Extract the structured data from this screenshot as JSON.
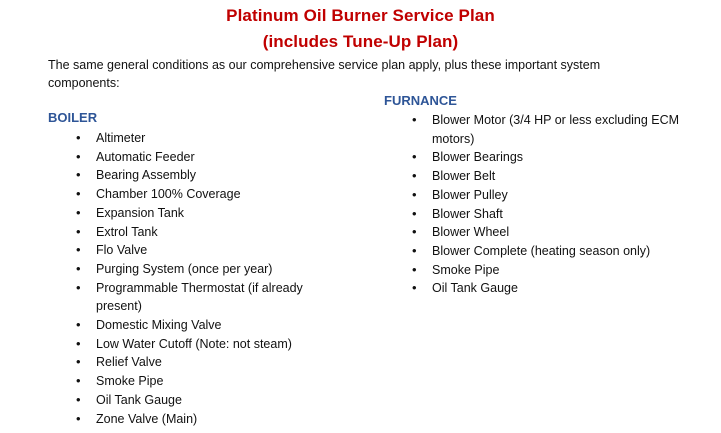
{
  "title_line1": "Platinum  Oil Burner Service Plan",
  "title_line2": "(includes Tune-Up Plan)",
  "intro": "The same general conditions as our comprehensive service plan apply, plus these important system components:",
  "colors": {
    "title": "#c00000",
    "heading": "#2e5597"
  },
  "boiler": {
    "heading": "BOILER",
    "items": [
      "Altimeter",
      "Automatic Feeder",
      "Bearing Assembly",
      "Chamber 100% Coverage",
      "Expansion Tank",
      "Extrol Tank",
      "Flo Valve",
      "Purging System (once per year)",
      "Programmable Thermostat (if already present)",
      "Domestic Mixing Valve",
      "Low Water Cutoff (Note: not steam)",
      "Relief Valve",
      "Smoke Pipe",
      "Oil Tank Gauge",
      "Zone Valve (Main)"
    ]
  },
  "furnace": {
    "heading": "FURNANCE",
    "items": [
      "Blower Motor (3/4 HP or less excluding ECM motors)",
      "Blower Bearings",
      "Blower Belt",
      "Blower Pulley",
      "Blower Shaft",
      "Blower Wheel",
      "Blower Complete (heating season only)",
      "Smoke Pipe",
      "Oil Tank Gauge"
    ]
  }
}
